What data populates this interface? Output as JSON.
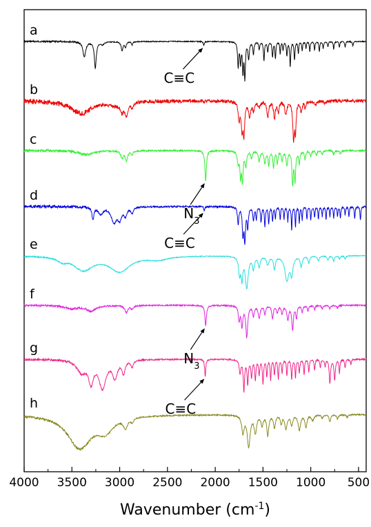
{
  "chart_data": {
    "type": "line",
    "xlabel": "Wavenumber (cm",
    "xlabel_sup": "-1",
    "xlabel_close": ")",
    "xlim": [
      4000,
      420
    ],
    "x_reversed": true,
    "y_axis_ticks": false,
    "grid": false,
    "xticks": [
      4000,
      3500,
      3000,
      2500,
      2000,
      1500,
      1000,
      500
    ],
    "series": [
      {
        "name": "a",
        "color": "#000000",
        "noise": 0.7,
        "peaks": [
          [
            3370,
            -22,
            18
          ],
          [
            3255,
            -38,
            12
          ],
          [
            3180,
            -4,
            25
          ],
          [
            2975,
            -13,
            12
          ],
          [
            2940,
            -8,
            10
          ],
          [
            2870,
            -5,
            8
          ],
          [
            2120,
            -6,
            6
          ],
          [
            1760,
            -36,
            7
          ],
          [
            1735,
            -30,
            7
          ],
          [
            1710,
            -42,
            6
          ],
          [
            1690,
            -52,
            7
          ],
          [
            1650,
            -25,
            8
          ],
          [
            1600,
            -18,
            7
          ],
          [
            1540,
            -12,
            6
          ],
          [
            1490,
            -28,
            6
          ],
          [
            1450,
            -15,
            6
          ],
          [
            1400,
            -22,
            6
          ],
          [
            1370,
            -24,
            6
          ],
          [
            1320,
            -18,
            5
          ],
          [
            1290,
            -12,
            5
          ],
          [
            1250,
            -20,
            6
          ],
          [
            1215,
            -36,
            6
          ],
          [
            1170,
            -26,
            6
          ],
          [
            1130,
            -18,
            5
          ],
          [
            1090,
            -13,
            5
          ],
          [
            1050,
            -10,
            5
          ],
          [
            1010,
            -15,
            5
          ],
          [
            960,
            -12,
            5
          ],
          [
            910,
            -15,
            5
          ],
          [
            870,
            -11,
            5
          ],
          [
            820,
            -8,
            5
          ],
          [
            760,
            -12,
            5
          ],
          [
            700,
            -9,
            5
          ],
          [
            640,
            -8,
            5
          ],
          [
            560,
            -6,
            6
          ]
        ]
      },
      {
        "name": "b",
        "color": "#ee0000",
        "noise": 2.5,
        "peaks": [
          [
            3400,
            -18,
            130
          ],
          [
            3050,
            -5,
            80
          ],
          [
            2975,
            -12,
            20
          ],
          [
            2930,
            -18,
            18
          ],
          [
            2870,
            -8,
            15
          ],
          [
            1750,
            -25,
            12
          ],
          [
            1720,
            -35,
            10
          ],
          [
            1700,
            -45,
            10
          ],
          [
            1640,
            -20,
            15
          ],
          [
            1600,
            -12,
            10
          ],
          [
            1540,
            -8,
            15
          ],
          [
            1450,
            -22,
            12
          ],
          [
            1380,
            -25,
            10
          ],
          [
            1340,
            -15,
            10
          ],
          [
            1260,
            -20,
            12
          ],
          [
            1180,
            -55,
            10
          ],
          [
            1160,
            -40,
            8
          ],
          [
            1100,
            -15,
            10
          ],
          [
            1060,
            -10,
            8
          ],
          [
            950,
            -6,
            10
          ],
          [
            850,
            -4,
            10
          ]
        ]
      },
      {
        "name": "c",
        "color": "#33ee33",
        "noise": 1.2,
        "peaks": [
          [
            3350,
            -6,
            80
          ],
          [
            2975,
            -10,
            15
          ],
          [
            2930,
            -14,
            15
          ],
          [
            2870,
            -5,
            12
          ],
          [
            2100,
            -44,
            9
          ],
          [
            1760,
            -18,
            10
          ],
          [
            1735,
            -35,
            8
          ],
          [
            1715,
            -42,
            8
          ],
          [
            1680,
            -22,
            10
          ],
          [
            1620,
            -10,
            10
          ],
          [
            1540,
            -15,
            10
          ],
          [
            1480,
            -18,
            10
          ],
          [
            1440,
            -20,
            8
          ],
          [
            1390,
            -25,
            8
          ],
          [
            1350,
            -18,
            8
          ],
          [
            1300,
            -15,
            8
          ],
          [
            1250,
            -20,
            10
          ],
          [
            1190,
            -48,
            8
          ],
          [
            1165,
            -42,
            8
          ],
          [
            1120,
            -18,
            8
          ],
          [
            1060,
            -12,
            8
          ],
          [
            1000,
            -8,
            8
          ],
          [
            940,
            -6,
            8
          ],
          [
            880,
            -5,
            8
          ],
          [
            760,
            -5,
            8
          ],
          [
            690,
            -4,
            8
          ]
        ]
      },
      {
        "name": "d",
        "color": "#0000dd",
        "noise": 1.2,
        "peaks": [
          [
            3280,
            -18,
            12
          ],
          [
            3200,
            -10,
            30
          ],
          [
            3060,
            -22,
            35
          ],
          [
            3000,
            -16,
            25
          ],
          [
            2940,
            -12,
            18
          ],
          [
            2870,
            -8,
            15
          ],
          [
            2115,
            -6,
            6
          ],
          [
            1760,
            -25,
            8
          ],
          [
            1710,
            -40,
            8
          ],
          [
            1690,
            -48,
            8
          ],
          [
            1660,
            -30,
            8
          ],
          [
            1600,
            -20,
            8
          ],
          [
            1570,
            -18,
            6
          ],
          [
            1520,
            -22,
            6
          ],
          [
            1480,
            -28,
            6
          ],
          [
            1440,
            -24,
            6
          ],
          [
            1400,
            -20,
            6
          ],
          [
            1370,
            -18,
            5
          ],
          [
            1320,
            -20,
            5
          ],
          [
            1280,
            -18,
            5
          ],
          [
            1240,
            -22,
            5
          ],
          [
            1200,
            -35,
            5
          ],
          [
            1160,
            -30,
            5
          ],
          [
            1120,
            -24,
            5
          ],
          [
            1090,
            -20,
            5
          ],
          [
            1040,
            -18,
            5
          ],
          [
            1000,
            -20,
            5
          ],
          [
            960,
            -16,
            5
          ],
          [
            920,
            -18,
            5
          ],
          [
            880,
            -14,
            5
          ],
          [
            840,
            -20,
            5
          ],
          [
            800,
            -14,
            5
          ],
          [
            760,
            -18,
            5
          ],
          [
            720,
            -14,
            5
          ],
          [
            690,
            -16,
            5
          ],
          [
            640,
            -12,
            5
          ],
          [
            600,
            -14,
            5
          ],
          [
            540,
            -18,
            5
          ],
          [
            480,
            -20,
            5
          ]
        ]
      },
      {
        "name": "e",
        "color": "#22dddd",
        "noise": 0.6,
        "peaks": [
          [
            3600,
            -6,
            60
          ],
          [
            3380,
            -20,
            120
          ],
          [
            3000,
            -22,
            130
          ],
          [
            2600,
            -5,
            120
          ],
          [
            1745,
            -25,
            12
          ],
          [
            1720,
            -30,
            10
          ],
          [
            1670,
            -45,
            18
          ],
          [
            1600,
            -18,
            12
          ],
          [
            1540,
            -15,
            12
          ],
          [
            1450,
            -12,
            15
          ],
          [
            1380,
            -18,
            12
          ],
          [
            1250,
            -35,
            25
          ],
          [
            1200,
            -25,
            15
          ],
          [
            1100,
            -15,
            12
          ],
          [
            1020,
            -10,
            10
          ],
          [
            920,
            -7,
            10
          ],
          [
            820,
            -6,
            10
          ],
          [
            760,
            -8,
            8
          ],
          [
            700,
            -5,
            8
          ],
          [
            640,
            -5,
            8
          ]
        ]
      },
      {
        "name": "f",
        "color": "#dd22dd",
        "noise": 1.0,
        "peaks": [
          [
            3500,
            -5,
            80
          ],
          [
            3300,
            -8,
            60
          ],
          [
            2930,
            -10,
            20
          ],
          [
            2870,
            -5,
            15
          ],
          [
            2100,
            -30,
            9
          ],
          [
            1750,
            -20,
            10
          ],
          [
            1720,
            -30,
            10
          ],
          [
            1670,
            -45,
            12
          ],
          [
            1600,
            -15,
            10
          ],
          [
            1540,
            -18,
            12
          ],
          [
            1480,
            -12,
            10
          ],
          [
            1400,
            -18,
            10
          ],
          [
            1350,
            -10,
            10
          ],
          [
            1300,
            -12,
            10
          ],
          [
            1240,
            -20,
            12
          ],
          [
            1190,
            -35,
            10
          ],
          [
            1150,
            -18,
            8
          ],
          [
            1090,
            -10,
            8
          ],
          [
            1030,
            -8,
            8
          ],
          [
            960,
            -6,
            8
          ],
          [
            880,
            -5,
            8
          ],
          [
            800,
            -5,
            8
          ],
          [
            720,
            -4,
            8
          ]
        ]
      },
      {
        "name": "g",
        "color": "#ee2288",
        "noise": 1.0,
        "peaks": [
          [
            3400,
            -18,
            60
          ],
          [
            3300,
            -30,
            30
          ],
          [
            3180,
            -40,
            45
          ],
          [
            3050,
            -25,
            30
          ],
          [
            2960,
            -18,
            20
          ],
          [
            2870,
            -10,
            15
          ],
          [
            2105,
            -25,
            7
          ],
          [
            1740,
            -20,
            10
          ],
          [
            1700,
            -45,
            8
          ],
          [
            1660,
            -35,
            8
          ],
          [
            1620,
            -25,
            8
          ],
          [
            1580,
            -30,
            7
          ],
          [
            1540,
            -22,
            7
          ],
          [
            1500,
            -35,
            7
          ],
          [
            1460,
            -25,
            6
          ],
          [
            1420,
            -30,
            6
          ],
          [
            1380,
            -22,
            6
          ],
          [
            1340,
            -28,
            6
          ],
          [
            1300,
            -20,
            6
          ],
          [
            1250,
            -24,
            6
          ],
          [
            1200,
            -30,
            6
          ],
          [
            1160,
            -26,
            6
          ],
          [
            1120,
            -20,
            6
          ],
          [
            1070,
            -22,
            6
          ],
          [
            1020,
            -18,
            6
          ],
          [
            960,
            -15,
            6
          ],
          [
            900,
            -12,
            6
          ],
          [
            850,
            -10,
            6
          ],
          [
            800,
            -35,
            8
          ],
          [
            750,
            -30,
            8
          ],
          [
            700,
            -20,
            6
          ],
          [
            640,
            -12,
            6
          ],
          [
            580,
            -8,
            6
          ]
        ]
      },
      {
        "name": "h",
        "color": "#888820",
        "noise": 1.0,
        "peaks": [
          [
            3420,
            -48,
            150
          ],
          [
            3150,
            -20,
            100
          ],
          [
            2940,
            -14,
            25
          ],
          [
            2870,
            -6,
            15
          ],
          [
            1710,
            -25,
            15
          ],
          [
            1650,
            -45,
            18
          ],
          [
            1580,
            -25,
            15
          ],
          [
            1510,
            -15,
            12
          ],
          [
            1450,
            -30,
            12
          ],
          [
            1380,
            -18,
            12
          ],
          [
            1310,
            -12,
            10
          ],
          [
            1260,
            -20,
            15
          ],
          [
            1200,
            -15,
            12
          ],
          [
            1120,
            -22,
            15
          ],
          [
            1050,
            -18,
            12
          ],
          [
            980,
            -8,
            15
          ],
          [
            880,
            -5,
            10
          ],
          [
            800,
            -10,
            10
          ],
          [
            720,
            -6,
            10
          ],
          [
            620,
            -4,
            10
          ]
        ]
      }
    ],
    "annotations": [
      {
        "text": "C≡C",
        "target_series": "a",
        "target_x": 2120
      },
      {
        "text": "N",
        "sub": "3",
        "target_series": "c",
        "target_x": 2100
      },
      {
        "text": "C≡C",
        "target_series": "d",
        "target_x": 2115
      },
      {
        "text": "N",
        "sub": "3",
        "target_series": "f",
        "target_x": 2100
      },
      {
        "text": "C≡C",
        "target_series": "g",
        "target_x": 2105
      }
    ]
  }
}
